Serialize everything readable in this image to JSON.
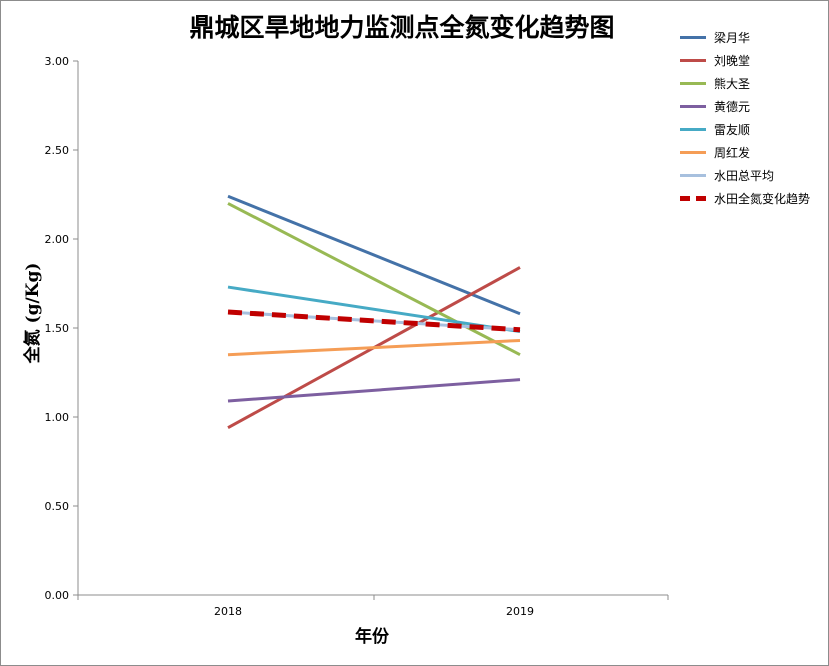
{
  "chart_data": {
    "type": "line",
    "title": "鼎城区旱地地力监测点全氮变化趋势图",
    "xlabel": "年份",
    "ylabel": "全氮 (g/Kg)",
    "categories": [
      "2018",
      "2019"
    ],
    "ylim": [
      0,
      3
    ],
    "yticks": [
      "0.00",
      "0.50",
      "1.00",
      "1.50",
      "2.00",
      "2.50",
      "3.00"
    ],
    "grid": false,
    "legend_position": "right",
    "series": [
      {
        "name": "梁月华",
        "values": [
          2.24,
          1.58
        ],
        "color": "#4472a8",
        "style": "solid"
      },
      {
        "name": "刘晚堂",
        "values": [
          0.94,
          1.84
        ],
        "color": "#be4b48",
        "style": "solid"
      },
      {
        "name": "熊大圣",
        "values": [
          2.2,
          1.35
        ],
        "color": "#98b954",
        "style": "solid"
      },
      {
        "name": "黄德元",
        "values": [
          1.09,
          1.21
        ],
        "color": "#7d5fa0",
        "style": "solid"
      },
      {
        "name": "雷友顺",
        "values": [
          1.73,
          1.48
        ],
        "color": "#46aac5",
        "style": "solid"
      },
      {
        "name": "周红发",
        "values": [
          1.35,
          1.43
        ],
        "color": "#f59d56",
        "style": "solid"
      },
      {
        "name": "水田总平均",
        "values": [
          1.59,
          1.49
        ],
        "color": "#a7c0de",
        "style": "solid"
      },
      {
        "name": "水田全氮变化趋势",
        "values": [
          1.59,
          1.49
        ],
        "color": "#c00000",
        "style": "dashed"
      }
    ]
  }
}
